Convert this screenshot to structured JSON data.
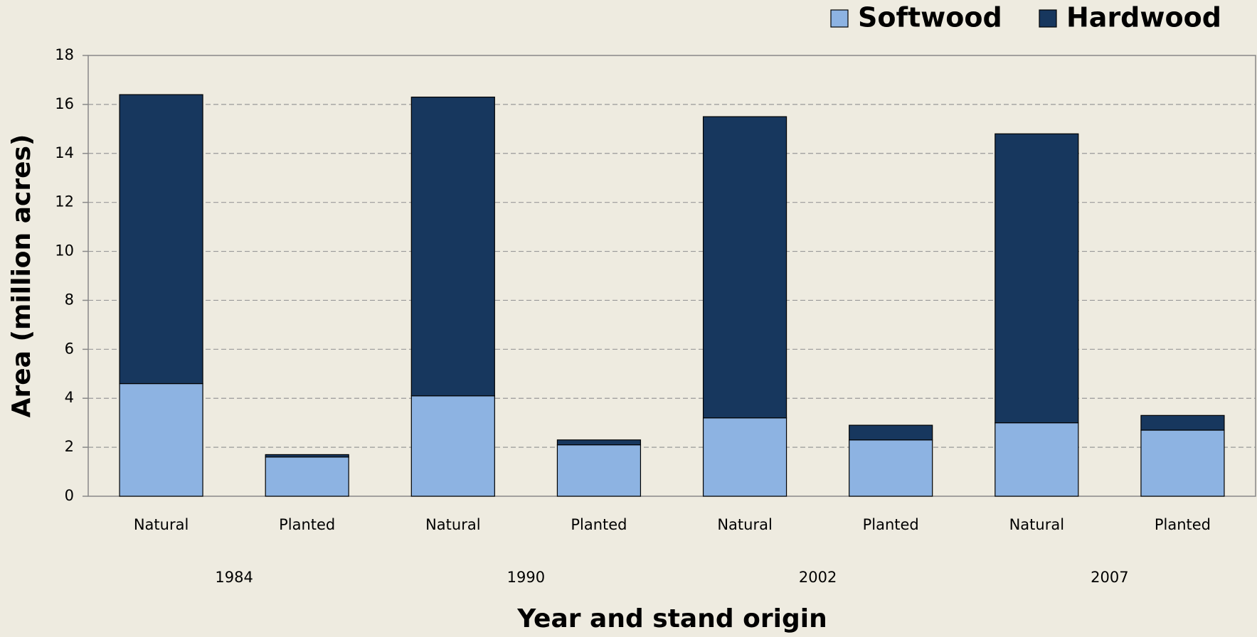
{
  "chart_data": {
    "type": "stacked_bar",
    "xlabel": "Year and stand origin",
    "ylabel": "Area (million acres)",
    "categories": [
      "Natural",
      "Planted",
      "Natural",
      "Planted",
      "Natural",
      "Planted",
      "Natural",
      "Planted"
    ],
    "groups": [
      "1984",
      "1990",
      "2002",
      "2007"
    ],
    "series": [
      {
        "name": "Softwood",
        "color": "#8db3e2",
        "values": [
          4.6,
          1.6,
          4.1,
          2.1,
          3.2,
          2.3,
          3.0,
          2.7
        ]
      },
      {
        "name": "Hardwood",
        "color": "#17375e",
        "values": [
          11.8,
          0.1,
          12.2,
          0.2,
          12.3,
          0.6,
          11.8,
          0.6
        ]
      }
    ],
    "ylim": [
      0,
      18
    ],
    "yticks": [
      0,
      2,
      4,
      6,
      8,
      10,
      12,
      14,
      16,
      18
    ],
    "grid": true,
    "legend": "top-right"
  }
}
